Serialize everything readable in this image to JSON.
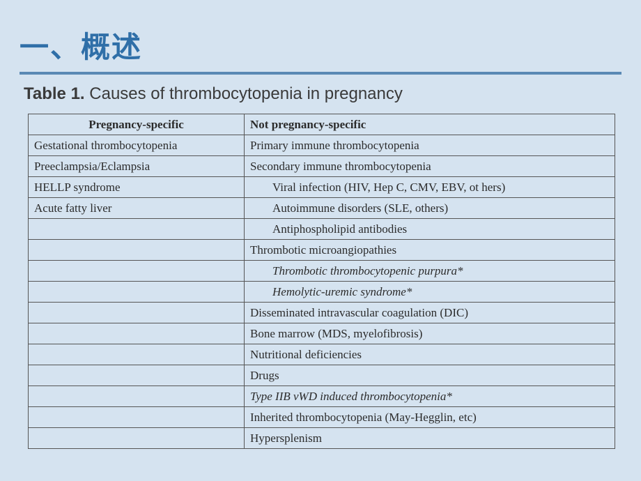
{
  "slide": {
    "title": "一、概述"
  },
  "table": {
    "label": "Table 1.",
    "caption": "Causes of thrombocytopenia in pregnancy",
    "columns": [
      "Pregnancy-specific",
      "Not pregnancy-specific"
    ],
    "rows": [
      {
        "left": "Gestational thrombocytopenia",
        "right": "Primary immune thrombocytopenia"
      },
      {
        "left": "Preeclampsia/Eclampsia",
        "right": "Secondary immune thrombocytopenia"
      },
      {
        "left": "HELLP syndrome",
        "right": "Viral infection (HIV, Hep C, CMV, EBV, ot hers)",
        "right_indent": true
      },
      {
        "left": "Acute fatty liver",
        "right": "Autoimmune disorders (SLE, others)",
        "right_indent": true
      },
      {
        "left": "",
        "right": "Antiphospholipid antibodies",
        "right_indent": true
      },
      {
        "left": "",
        "right": "Thrombotic microangiopathies"
      },
      {
        "left": "",
        "right": "Thrombotic thrombocytopenic purpura*",
        "right_indent": true,
        "right_italic": true
      },
      {
        "left": "",
        "right": "Hemolytic-uremic syndrome*",
        "right_indent": true,
        "right_italic": true
      },
      {
        "left": "",
        "right": "Disseminated intravascular coagulation (DIC)"
      },
      {
        "left": "",
        "right": "Bone marrow (MDS, myelofibrosis)"
      },
      {
        "left": "",
        "right": "Nutritional deficiencies"
      },
      {
        "left": "",
        "right": "Drugs"
      },
      {
        "left": "",
        "right": "Type IIB vWD induced thrombocytopenia*",
        "right_italic": true
      },
      {
        "left": "",
        "right": "Inherited thrombocytopenia (May-Hegglin, etc)"
      },
      {
        "left": "",
        "right": "Hypersplenism"
      }
    ]
  }
}
